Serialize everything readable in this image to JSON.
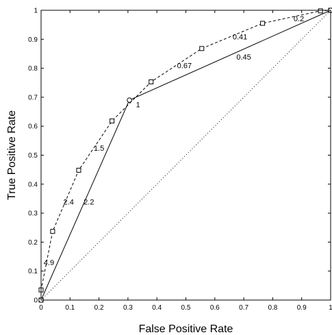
{
  "chart_data": {
    "type": "line",
    "title": "",
    "xlabel": "False Positive Rate",
    "ylabel": "True Positive Rate",
    "xlim": [
      0,
      1
    ],
    "ylim": [
      0,
      1
    ],
    "xticks": [
      "0",
      "0.1",
      "0.2",
      "0.3",
      "0.4",
      "0.5",
      "0.6",
      "0.7",
      "0.8",
      "0.9",
      "1"
    ],
    "yticks": [
      "0",
      "0.1",
      "0.2",
      "0.3",
      "0.4",
      "0.5",
      "0.6",
      "0.7",
      "0.8",
      "0.9",
      "1"
    ],
    "grid": false,
    "series": [
      {
        "style": "dashed",
        "marker": "square",
        "x": [
          0,
          0.0,
          0.04,
          0.13,
          0.245,
          0.38,
          0.555,
          0.765,
          0.965,
          1.0
        ],
        "y": [
          0,
          0.035,
          0.237,
          0.448,
          0.618,
          0.753,
          0.868,
          0.955,
          0.998,
          1.0
        ]
      },
      {
        "style": "solid",
        "marker": "circle",
        "x": [
          0,
          0.305,
          1.0
        ],
        "y": [
          0,
          0.69,
          1.0
        ]
      },
      {
        "style": "dotted",
        "marker": "none",
        "x": [
          0,
          1
        ],
        "y": [
          0,
          1
        ]
      }
    ],
    "annotations": [
      {
        "text": "4.9",
        "x": 0.027,
        "y": 0.12
      },
      {
        "text": "2.4",
        "x": 0.095,
        "y": 0.33
      },
      {
        "text": "2.2",
        "x": 0.165,
        "y": 0.33
      },
      {
        "text": "1.5",
        "x": 0.2,
        "y": 0.515
      },
      {
        "text": "1",
        "x": 0.335,
        "y": 0.665
      },
      {
        "text": "0.67",
        "x": 0.495,
        "y": 0.8
      },
      {
        "text": "0.45",
        "x": 0.7,
        "y": 0.83
      },
      {
        "text": "0.41",
        "x": 0.687,
        "y": 0.9
      },
      {
        "text": "0.2",
        "x": 0.89,
        "y": 0.962
      }
    ]
  }
}
